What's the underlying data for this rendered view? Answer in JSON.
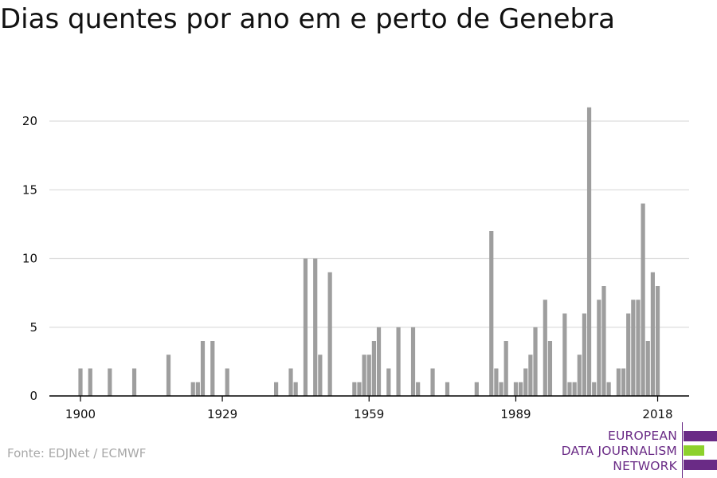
{
  "title": "Dias quentes por ano em e perto de Genebra",
  "source": "Fonte: EDJNet / ECMWF",
  "logo": {
    "lines": [
      "EUROPEAN",
      "DATA JOURNALISM",
      "NETWORK"
    ],
    "colors": {
      "primary": "#6a2b86",
      "accent": "#8dd12c"
    }
  },
  "colors": {
    "bar": "#9e9e9e",
    "grid": "#dddddd",
    "axis": "#000000",
    "text": "#111111"
  },
  "chart_data": {
    "type": "bar",
    "title": "Dias quentes por ano em e perto de Genebra",
    "xlabel": "",
    "ylabel": "",
    "ylim": [
      0,
      21
    ],
    "xlim": [
      1900,
      2018
    ],
    "x_ticks": [
      1900,
      1929,
      1959,
      1989,
      2018
    ],
    "y_ticks": [
      0,
      5,
      10,
      15,
      20
    ],
    "grid": true,
    "legend": "none",
    "x": [
      1900,
      1902,
      1906,
      1911,
      1918,
      1923,
      1924,
      1925,
      1927,
      1930,
      1940,
      1943,
      1944,
      1946,
      1948,
      1949,
      1951,
      1956,
      1957,
      1958,
      1959,
      1960,
      1961,
      1963,
      1965,
      1968,
      1969,
      1972,
      1975,
      1981,
      1984,
      1985,
      1986,
      1987,
      1989,
      1990,
      1991,
      1992,
      1993,
      1995,
      1996,
      1999,
      2000,
      2001,
      2002,
      2003,
      2004,
      2005,
      2006,
      2007,
      2008,
      2010,
      2011,
      2012,
      2013,
      2014,
      2015,
      2016,
      2017,
      2018
    ],
    "values": [
      2,
      2,
      2,
      2,
      3,
      1,
      1,
      4,
      4,
      2,
      1,
      2,
      1,
      10,
      10,
      3,
      9,
      1,
      1,
      3,
      3,
      4,
      5,
      2,
      5,
      5,
      1,
      2,
      1,
      1,
      12,
      2,
      1,
      4,
      1,
      1,
      2,
      3,
      5,
      7,
      4,
      6,
      1,
      1,
      3,
      6,
      21,
      1,
      7,
      8,
      1,
      2,
      2,
      6,
      7,
      7,
      14,
      4,
      9,
      8
    ]
  }
}
